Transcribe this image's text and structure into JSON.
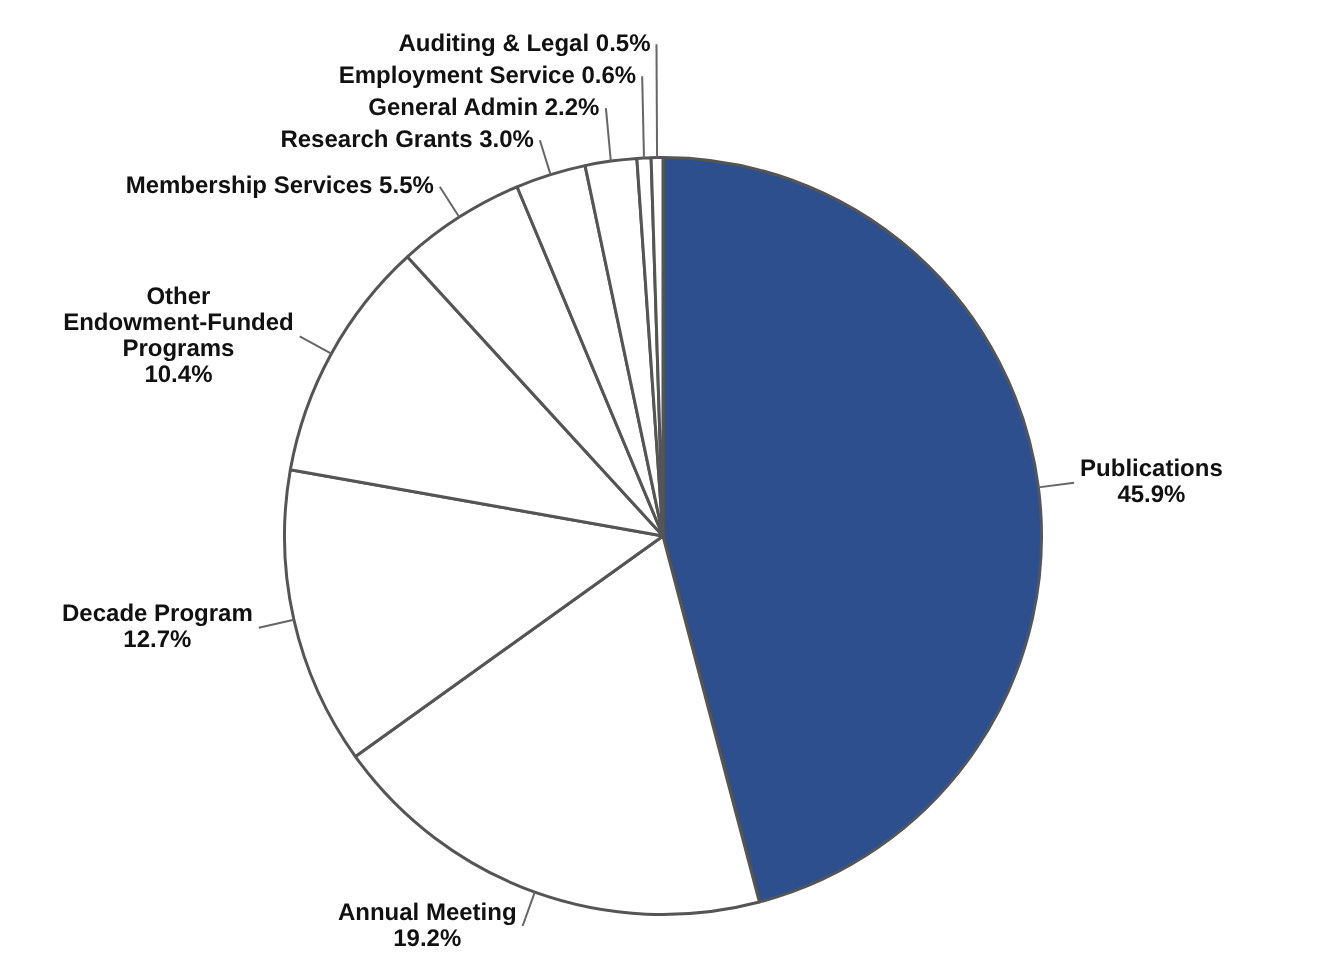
{
  "chart_data": {
    "type": "pie",
    "categories": [
      "Publications",
      "Annual Meeting",
      "Decade Program",
      "Other Endowment-Funded Programs",
      "Membership Services",
      "Research Grants",
      "General Admin",
      "Employment Service",
      "Auditing & Legal"
    ],
    "values": [
      45.9,
      19.2,
      12.7,
      10.4,
      5.5,
      3.0,
      2.2,
      0.6,
      0.5
    ],
    "value_labels": [
      "45.9%",
      "19.2%",
      "12.7%",
      "10.4%",
      "5.5%",
      "3.0%",
      "2.2%",
      "0.6%",
      "0.5%"
    ],
    "colors": [
      "#2d4f8e",
      "#ffffff",
      "#ffffff",
      "#ffffff",
      "#ffffff",
      "#ffffff",
      "#ffffff",
      "#ffffff",
      "#ffffff"
    ],
    "legend": false
  }
}
